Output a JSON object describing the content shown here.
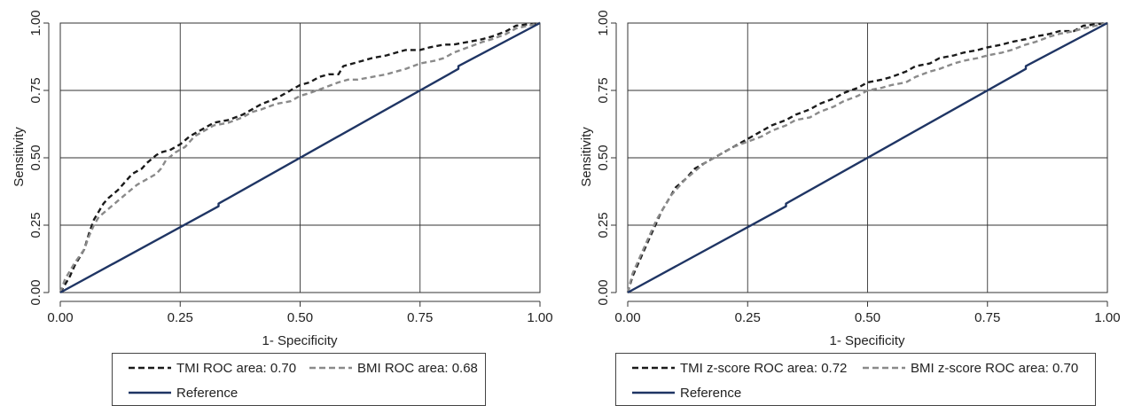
{
  "chart_data": [
    {
      "type": "line",
      "xlabel": "1- Specificity",
      "ylabel": "Sensitivity",
      "xlim": [
        0,
        1
      ],
      "ylim": [
        0,
        1
      ],
      "xticks": [
        "0.00",
        "0.25",
        "0.50",
        "0.75",
        "1.00"
      ],
      "yticks": [
        "0.00",
        "0.25",
        "0.50",
        "0.75",
        "1.00"
      ],
      "grid": true,
      "legend_position": "bottom",
      "series": [
        {
          "name": "TMI ROC area: 0.70",
          "style": "dashed",
          "color": "#1a1a1a",
          "x": [
            0,
            0.01,
            0.02,
            0.03,
            0.05,
            0.06,
            0.07,
            0.08,
            0.09,
            0.1,
            0.12,
            0.13,
            0.14,
            0.15,
            0.17,
            0.18,
            0.2,
            0.21,
            0.23,
            0.25,
            0.27,
            0.3,
            0.32,
            0.35,
            0.38,
            0.4,
            0.42,
            0.45,
            0.47,
            0.5,
            0.52,
            0.54,
            0.56,
            0.58,
            0.59,
            0.61,
            0.63,
            0.65,
            0.68,
            0.7,
            0.72,
            0.75,
            0.77,
            0.8,
            0.82,
            0.85,
            0.88,
            0.9,
            0.93,
            0.95,
            1.0
          ],
          "y": [
            0,
            0.03,
            0.06,
            0.1,
            0.16,
            0.22,
            0.27,
            0.3,
            0.33,
            0.35,
            0.38,
            0.4,
            0.42,
            0.44,
            0.46,
            0.48,
            0.51,
            0.52,
            0.53,
            0.55,
            0.58,
            0.61,
            0.63,
            0.64,
            0.66,
            0.68,
            0.7,
            0.72,
            0.74,
            0.77,
            0.78,
            0.8,
            0.81,
            0.81,
            0.84,
            0.85,
            0.86,
            0.87,
            0.88,
            0.89,
            0.9,
            0.9,
            0.91,
            0.92,
            0.92,
            0.93,
            0.94,
            0.95,
            0.97,
            0.99,
            1.0
          ]
        },
        {
          "name": "BMI ROC area: 0.68",
          "style": "dashed",
          "color": "#8a8a8a",
          "x": [
            0,
            0.01,
            0.02,
            0.03,
            0.05,
            0.06,
            0.07,
            0.08,
            0.1,
            0.12,
            0.14,
            0.16,
            0.18,
            0.2,
            0.21,
            0.22,
            0.24,
            0.26,
            0.28,
            0.3,
            0.32,
            0.35,
            0.38,
            0.4,
            0.42,
            0.45,
            0.48,
            0.5,
            0.52,
            0.55,
            0.58,
            0.6,
            0.62,
            0.65,
            0.68,
            0.7,
            0.72,
            0.75,
            0.78,
            0.8,
            0.82,
            0.85,
            0.88,
            0.9,
            0.93,
            0.95,
            1.0
          ],
          "y": [
            0,
            0.05,
            0.08,
            0.11,
            0.16,
            0.21,
            0.25,
            0.28,
            0.31,
            0.34,
            0.37,
            0.4,
            0.42,
            0.44,
            0.46,
            0.49,
            0.52,
            0.54,
            0.58,
            0.6,
            0.62,
            0.63,
            0.65,
            0.67,
            0.68,
            0.7,
            0.71,
            0.73,
            0.74,
            0.76,
            0.78,
            0.79,
            0.79,
            0.8,
            0.81,
            0.82,
            0.83,
            0.85,
            0.86,
            0.87,
            0.89,
            0.91,
            0.93,
            0.94,
            0.96,
            0.98,
            1.0
          ]
        },
        {
          "name": "Reference",
          "style": "solid",
          "color": "#1f3564",
          "x": [
            0,
            0.33,
            0.33,
            0.83,
            0.83,
            1.0
          ],
          "y": [
            0,
            0.32,
            0.33,
            0.83,
            0.84,
            1.0
          ]
        }
      ]
    },
    {
      "type": "line",
      "xlabel": "1- Specificity",
      "ylabel": "Sensitivity",
      "xlim": [
        0,
        1
      ],
      "ylim": [
        0,
        1
      ],
      "xticks": [
        "0.00",
        "0.25",
        "0.50",
        "0.75",
        "1.00"
      ],
      "yticks": [
        "0.00",
        "0.25",
        "0.50",
        "0.75",
        "1.00"
      ],
      "grid": true,
      "legend_position": "bottom",
      "series": [
        {
          "name": "TMI z-score ROC area: 0.72",
          "style": "dashed",
          "color": "#1a1a1a",
          "x": [
            0,
            0.01,
            0.02,
            0.03,
            0.04,
            0.05,
            0.06,
            0.07,
            0.08,
            0.09,
            0.1,
            0.12,
            0.14,
            0.16,
            0.18,
            0.2,
            0.22,
            0.25,
            0.28,
            0.3,
            0.33,
            0.35,
            0.38,
            0.4,
            0.43,
            0.45,
            0.48,
            0.5,
            0.53,
            0.55,
            0.58,
            0.6,
            0.63,
            0.65,
            0.68,
            0.7,
            0.73,
            0.75,
            0.78,
            0.8,
            0.83,
            0.85,
            0.88,
            0.9,
            0.93,
            0.95,
            1.0
          ],
          "y": [
            0,
            0.06,
            0.1,
            0.14,
            0.18,
            0.22,
            0.26,
            0.3,
            0.33,
            0.36,
            0.39,
            0.42,
            0.46,
            0.48,
            0.5,
            0.52,
            0.54,
            0.57,
            0.6,
            0.62,
            0.64,
            0.66,
            0.68,
            0.7,
            0.72,
            0.74,
            0.76,
            0.78,
            0.79,
            0.8,
            0.82,
            0.84,
            0.85,
            0.87,
            0.88,
            0.89,
            0.9,
            0.91,
            0.92,
            0.93,
            0.94,
            0.95,
            0.96,
            0.97,
            0.97,
            0.99,
            1.0
          ]
        },
        {
          "name": "BMI z-score ROC area: 0.70",
          "style": "dashed",
          "color": "#8a8a8a",
          "x": [
            0,
            0.01,
            0.02,
            0.03,
            0.04,
            0.05,
            0.06,
            0.07,
            0.08,
            0.09,
            0.1,
            0.12,
            0.14,
            0.16,
            0.18,
            0.2,
            0.22,
            0.25,
            0.28,
            0.3,
            0.33,
            0.35,
            0.38,
            0.4,
            0.43,
            0.45,
            0.48,
            0.5,
            0.53,
            0.55,
            0.58,
            0.6,
            0.63,
            0.65,
            0.68,
            0.7,
            0.73,
            0.75,
            0.78,
            0.8,
            0.83,
            0.85,
            0.88,
            0.9,
            0.93,
            0.95,
            1.0
          ],
          "y": [
            0,
            0.07,
            0.11,
            0.15,
            0.19,
            0.23,
            0.27,
            0.3,
            0.33,
            0.36,
            0.38,
            0.42,
            0.45,
            0.48,
            0.5,
            0.52,
            0.54,
            0.56,
            0.58,
            0.6,
            0.62,
            0.64,
            0.65,
            0.67,
            0.69,
            0.71,
            0.73,
            0.75,
            0.76,
            0.77,
            0.78,
            0.8,
            0.82,
            0.83,
            0.85,
            0.86,
            0.87,
            0.88,
            0.89,
            0.9,
            0.92,
            0.93,
            0.95,
            0.96,
            0.97,
            0.98,
            1.0
          ]
        },
        {
          "name": "Reference",
          "style": "solid",
          "color": "#1f3564",
          "x": [
            0,
            0.33,
            0.33,
            0.83,
            0.83,
            1.0
          ],
          "y": [
            0,
            0.32,
            0.33,
            0.83,
            0.84,
            1.0
          ]
        }
      ]
    }
  ]
}
